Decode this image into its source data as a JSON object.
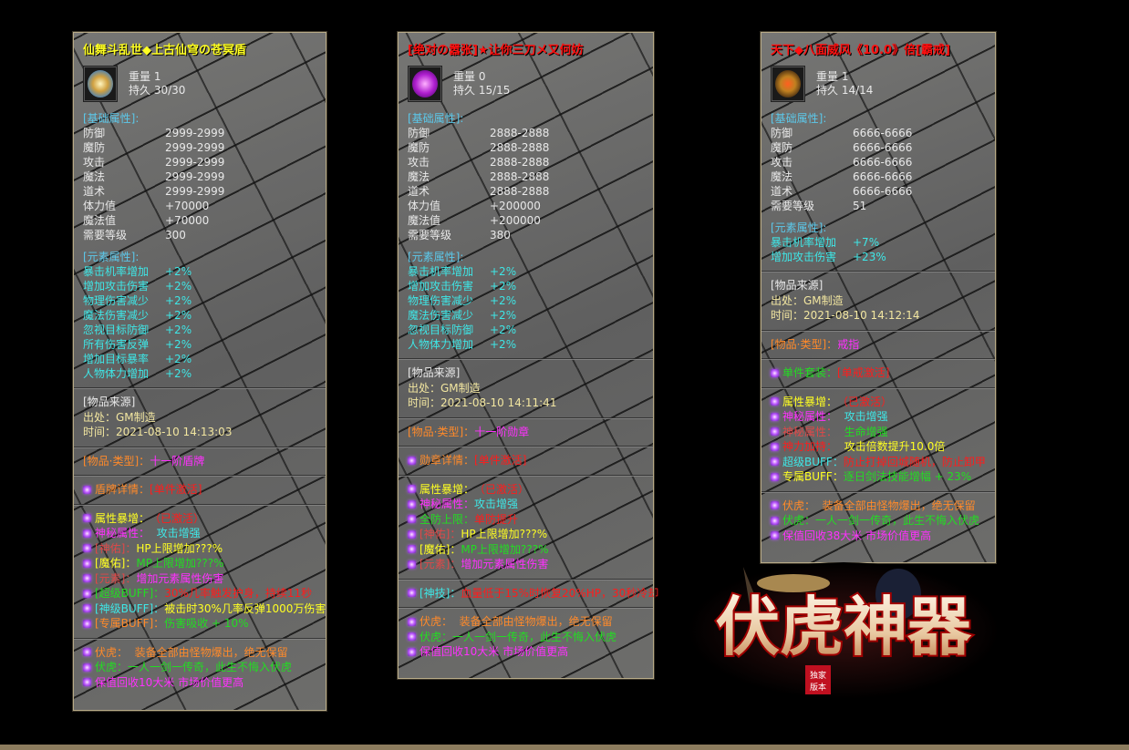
{
  "palette": {
    "white": "#e8e8e8",
    "yellow": "#ffff22",
    "gold": "#f2e6a0",
    "header": "#5cc8ea",
    "cyan": "#3ee6e6",
    "orange": "#ff8a2a",
    "red": "#ff1c1c",
    "pink": "#e04848",
    "magenta": "#ff30ff",
    "green": "#22dd22",
    "title_red": "#ff1010"
  },
  "panels": [
    {
      "title": "仙舞斗乱世◆上古仙穹の苍冥盾",
      "title_color": "yellow",
      "icon": "shield-icon",
      "weight": "重量 1",
      "durability": "持久 30/30",
      "sections": [
        {
          "kind": "rows",
          "header": "[基础属性]:",
          "color": "white",
          "sep": false,
          "rows": [
            [
              "防御",
              "2999-2999"
            ],
            [
              "魔防",
              "2999-2999"
            ],
            [
              "攻击",
              "2999-2999"
            ],
            [
              "魔法",
              "2999-2999"
            ],
            [
              "道术",
              "2999-2999"
            ],
            [
              "体力值",
              "+70000"
            ],
            [
              "魔法值",
              "+70000"
            ],
            [
              "需要等级",
              "300"
            ]
          ]
        },
        {
          "kind": "rows",
          "header": "[元素属性]:",
          "color": "cyan",
          "sep": false,
          "rows": [
            [
              "暴击机率增加",
              "+2%"
            ],
            [
              "增加攻击伤害",
              "+2%"
            ],
            [
              "物理伤害减少",
              "+2%"
            ],
            [
              "魔法伤害减少",
              "+2%"
            ],
            [
              "忽视目标防御",
              "+2%"
            ],
            [
              "所有伤害反弹",
              "+2%"
            ],
            [
              "增加目标暴率",
              "+2%"
            ],
            [
              "人物体力增加",
              "+2%"
            ]
          ]
        },
        {
          "kind": "lines",
          "sep": true,
          "lines": [
            {
              "b": false,
              "s": [
                [
                  "[物品来源]",
                  "white"
                ]
              ]
            },
            {
              "b": false,
              "s": [
                [
                  "出处：GM制造",
                  "gold"
                ]
              ]
            },
            {
              "b": false,
              "s": [
                [
                  "时间：2021-08-10 14:13:03",
                  "gold"
                ]
              ]
            }
          ]
        },
        {
          "kind": "lines",
          "sep": true,
          "lines": [
            {
              "b": false,
              "s": [
                [
                  "[物品·类型]：",
                  "orange"
                ],
                [
                  "十一阶盾牌",
                  "magenta"
                ]
              ]
            }
          ]
        },
        {
          "kind": "lines",
          "sep": true,
          "lines": [
            {
              "b": true,
              "s": [
                [
                  "盾牌详情：",
                  "orange"
                ],
                [
                  "[单件激活]",
                  "red"
                ]
              ]
            }
          ]
        },
        {
          "kind": "lines",
          "sep": true,
          "lines": [
            {
              "b": true,
              "s": [
                [
                  "属性暴增：",
                  "yellow"
                ],
                [
                  "（已激活）",
                  "red"
                ]
              ]
            },
            {
              "b": true,
              "s": [
                [
                  "神秘属性：",
                  "magenta"
                ],
                [
                  "  攻击增强",
                  "cyan"
                ]
              ]
            },
            {
              "b": true,
              "s": [
                [
                  "[神佑]：",
                  "pink"
                ],
                [
                  "HP上限增加???%",
                  "yellow"
                ]
              ]
            },
            {
              "b": true,
              "s": [
                [
                  "[魔佑]：",
                  "yellow"
                ],
                [
                  "MP上限增加???%",
                  "green"
                ]
              ]
            },
            {
              "b": true,
              "s": [
                [
                  "[元素]：",
                  "pink"
                ],
                [
                  "增加元素属性伤害",
                  "magenta"
                ]
              ]
            },
            {
              "b": true,
              "s": [
                [
                  "[超级BUFF]：",
                  "green"
                ],
                [
                  "30%几率触发护身，持续11秒",
                  "red"
                ]
              ]
            },
            {
              "b": true,
              "s": [
                [
                  "[神级BUFF]：",
                  "cyan"
                ],
                [
                  "被击时30%几率反弹1000万伤害",
                  "yellow"
                ]
              ]
            },
            {
              "b": true,
              "s": [
                [
                  "[专属BUFF]：",
                  "orange"
                ],
                [
                  "伤害吸收 + 10%",
                  "green"
                ]
              ]
            }
          ]
        },
        {
          "kind": "lines",
          "sep": true,
          "lines": [
            {
              "b": true,
              "s": [
                [
                  "伏虎：  装备全部由怪物爆出，绝无保留",
                  "orange"
                ]
              ]
            },
            {
              "b": true,
              "s": [
                [
                  "伏虎：一人一剑一传奇，此生不悔入伏虎",
                  "green"
                ]
              ]
            },
            {
              "b": true,
              "s": [
                [
                  "保值回收10大米 市场价值更高",
                  "magenta"
                ]
              ]
            }
          ]
        }
      ]
    },
    {
      "title": "[绝对の嚣张]★让你三刀メ又何妨",
      "title_color": "title_red",
      "icon": "medal-icon",
      "weight": "重量 0",
      "durability": "持久 15/15",
      "sections": [
        {
          "kind": "rows",
          "header": "[基础属性]:",
          "color": "white",
          "sep": false,
          "rows": [
            [
              "防御",
              "2888-2888"
            ],
            [
              "魔防",
              "2888-2888"
            ],
            [
              "攻击",
              "2888-2888"
            ],
            [
              "魔法",
              "2888-2888"
            ],
            [
              "道术",
              "2888-2888"
            ],
            [
              "体力值",
              "+200000"
            ],
            [
              "魔法值",
              "+200000"
            ],
            [
              "需要等级",
              "380"
            ]
          ]
        },
        {
          "kind": "rows",
          "header": "[元素属性]:",
          "color": "cyan",
          "sep": false,
          "rows": [
            [
              "暴击机率增加",
              "+2%"
            ],
            [
              "增加攻击伤害",
              "+2%"
            ],
            [
              "物理伤害减少",
              "+2%"
            ],
            [
              "魔法伤害减少",
              "+2%"
            ],
            [
              "忽视目标防御",
              "+2%"
            ],
            [
              "人物体力增加",
              "+2%"
            ]
          ]
        },
        {
          "kind": "lines",
          "sep": true,
          "lines": [
            {
              "b": false,
              "s": [
                [
                  "[物品来源]",
                  "white"
                ]
              ]
            },
            {
              "b": false,
              "s": [
                [
                  "出处：GM制造",
                  "gold"
                ]
              ]
            },
            {
              "b": false,
              "s": [
                [
                  "时间：2021-08-10 14:11:41",
                  "gold"
                ]
              ]
            }
          ]
        },
        {
          "kind": "lines",
          "sep": true,
          "lines": [
            {
              "b": false,
              "s": [
                [
                  "[物品·类型]：",
                  "orange"
                ],
                [
                  "十一阶勋章",
                  "magenta"
                ]
              ]
            }
          ]
        },
        {
          "kind": "lines",
          "sep": true,
          "lines": [
            {
              "b": true,
              "s": [
                [
                  "勋章详情：",
                  "orange"
                ],
                [
                  "[单件激活]",
                  "red"
                ]
              ]
            }
          ]
        },
        {
          "kind": "lines",
          "sep": true,
          "lines": [
            {
              "b": true,
              "s": [
                [
                  "属性暴增：",
                  "yellow"
                ],
                [
                  "（已激活）",
                  "red"
                ]
              ]
            },
            {
              "b": true,
              "s": [
                [
                  "神秘属性：",
                  "magenta"
                ],
                [
                  "攻击增强",
                  "cyan"
                ]
              ]
            },
            {
              "b": true,
              "s": [
                [
                  "全防上限：",
                  "green"
                ],
                [
                  "单防提升",
                  "red"
                ]
              ]
            },
            {
              "b": true,
              "s": [
                [
                  "[神佑]：",
                  "pink"
                ],
                [
                  "HP上限增加???%",
                  "yellow"
                ]
              ]
            },
            {
              "b": true,
              "s": [
                [
                  "[魔佑]：",
                  "yellow"
                ],
                [
                  "MP上限增加???%",
                  "green"
                ]
              ]
            },
            {
              "b": true,
              "s": [
                [
                  "[元素]：",
                  "pink"
                ],
                [
                  "增加元素属性伤害",
                  "magenta"
                ]
              ]
            }
          ]
        },
        {
          "kind": "lines",
          "sep": true,
          "lines": [
            {
              "b": true,
              "s": [
                [
                  "[神技]：",
                  "cyan"
                ],
                [
                  "血量低于15%时恢复20%HP，30秒冷却",
                  "red"
                ]
              ]
            }
          ]
        },
        {
          "kind": "lines",
          "sep": true,
          "lines": [
            {
              "b": true,
              "s": [
                [
                  "伏虎：  装备全部由怪物爆出，绝无保留",
                  "orange"
                ]
              ]
            },
            {
              "b": true,
              "s": [
                [
                  "伏虎：一人一剑一传奇，此生不悔入伏虎",
                  "green"
                ]
              ]
            },
            {
              "b": true,
              "s": [
                [
                  "保值回收10大米 市场价值更高",
                  "magenta"
                ]
              ]
            }
          ]
        }
      ]
    },
    {
      "title": "天下◆八面威风《10.0》倍[霸戒]",
      "title_color": "title_red",
      "icon": "ring-icon",
      "weight": "重量 1",
      "durability": "持久 14/14",
      "sections": [
        {
          "kind": "rows",
          "header": "[基础属性]:",
          "color": "white",
          "sep": false,
          "rows": [
            [
              "防御",
              "6666-6666"
            ],
            [
              "魔防",
              "6666-6666"
            ],
            [
              "攻击",
              "6666-6666"
            ],
            [
              "魔法",
              "6666-6666"
            ],
            [
              "道术",
              "6666-6666"
            ],
            [
              "需要等级",
              "51"
            ]
          ]
        },
        {
          "kind": "rows",
          "header": "[元素属性]:",
          "color": "cyan",
          "sep": false,
          "rows": [
            [
              "暴击机率增加",
              "+7%"
            ],
            [
              "增加攻击伤害",
              "+23%"
            ]
          ]
        },
        {
          "kind": "lines",
          "sep": true,
          "lines": [
            {
              "b": false,
              "s": [
                [
                  "[物品来源]",
                  "white"
                ]
              ]
            },
            {
              "b": false,
              "s": [
                [
                  "出处：GM制造",
                  "gold"
                ]
              ]
            },
            {
              "b": false,
              "s": [
                [
                  "时间：2021-08-10 14:12:14",
                  "gold"
                ]
              ]
            }
          ]
        },
        {
          "kind": "lines",
          "sep": true,
          "lines": [
            {
              "b": false,
              "s": [
                [
                  "[物品·类型]：",
                  "orange"
                ],
                [
                  "戒指",
                  "magenta"
                ]
              ]
            }
          ]
        },
        {
          "kind": "lines",
          "sep": true,
          "lines": [
            {
              "b": true,
              "s": [
                [
                  "单件套装：",
                  "green"
                ],
                [
                  "[单戒激活]",
                  "red"
                ]
              ]
            }
          ]
        },
        {
          "kind": "lines",
          "sep": true,
          "lines": [
            {
              "b": true,
              "s": [
                [
                  "属性暴增：",
                  "yellow"
                ],
                [
                  "（已激活）",
                  "red"
                ]
              ]
            },
            {
              "b": true,
              "s": [
                [
                  "神秘属性：",
                  "magenta"
                ],
                [
                  "  攻击增强",
                  "cyan"
                ]
              ]
            },
            {
              "b": true,
              "s": [
                [
                  "神秘属性：",
                  "pink"
                ],
                [
                  "  生命增强",
                  "green"
                ]
              ]
            },
            {
              "b": true,
              "s": [
                [
                  "神力加持：",
                  "red"
                ],
                [
                  "  攻击倍数提升10.0倍",
                  "yellow"
                ]
              ]
            },
            {
              "b": true,
              "s": [
                [
                  "超级BUFF：",
                  "cyan"
                ],
                [
                  "防止打掉回城随机，防止卸甲",
                  "red"
                ]
              ]
            },
            {
              "b": true,
              "s": [
                [
                  "专属BUFF：",
                  "yellow"
                ],
                [
                  "逐日剑法技能增幅 + 23%",
                  "green"
                ]
              ]
            }
          ]
        },
        {
          "kind": "lines",
          "sep": true,
          "lines": [
            {
              "b": true,
              "s": [
                [
                  "伏虎：  装备全部由怪物爆出，绝无保留",
                  "orange"
                ]
              ]
            },
            {
              "b": true,
              "s": [
                [
                  "伏虎：一人一剑一传奇，此生不悔入伏虎",
                  "green"
                ]
              ]
            },
            {
              "b": true,
              "s": [
                [
                  "保值回收38大米 市场价值更高",
                  "magenta"
                ]
              ]
            }
          ]
        }
      ]
    }
  ],
  "logo": {
    "title": "伏虎神器",
    "seal": "独家版本"
  }
}
